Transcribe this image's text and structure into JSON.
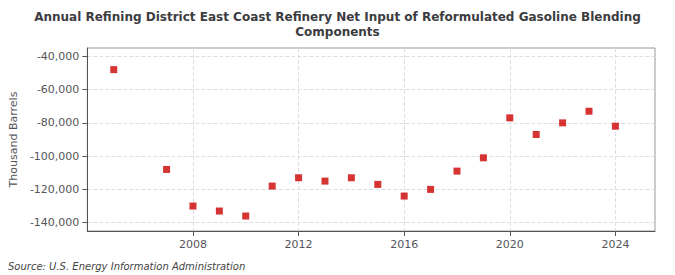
{
  "chart_data": {
    "type": "scatter",
    "title": "Annual Refining District East Coast Refinery Net Input of Reformulated Gasoline Blending\nComponents",
    "ylabel": "Thousand Barrels",
    "source": "Source: U.S. Energy Information Administration",
    "x": [
      2005,
      2007,
      2008,
      2009,
      2010,
      2011,
      2012,
      2013,
      2014,
      2015,
      2016,
      2017,
      2018,
      2019,
      2020,
      2021,
      2022,
      2023,
      2024
    ],
    "values": [
      -48000,
      -108000,
      -130000,
      -133000,
      -136000,
      -118000,
      -113000,
      -115000,
      -113000,
      -117000,
      -124000,
      -120000,
      -109000,
      -101000,
      -77000,
      -87000,
      -80000,
      -73000,
      -82000
    ],
    "color": "#cc0000",
    "marker": "square",
    "xlim": [
      2004.0,
      2025.5
    ],
    "xticks": [
      2008,
      2012,
      2016,
      2020,
      2024
    ],
    "ylim": [
      -145000,
      -35000
    ],
    "yticks": [
      {
        "value": -140000,
        "label": "-140,000"
      },
      {
        "value": -120000,
        "label": "-120,000"
      },
      {
        "value": -100000,
        "label": "-100,000"
      },
      {
        "value": -80000,
        "label": "-80,000"
      },
      {
        "value": -60000,
        "label": "-60,000"
      },
      {
        "value": -40000,
        "label": "-40,000"
      }
    ],
    "grid": true
  }
}
